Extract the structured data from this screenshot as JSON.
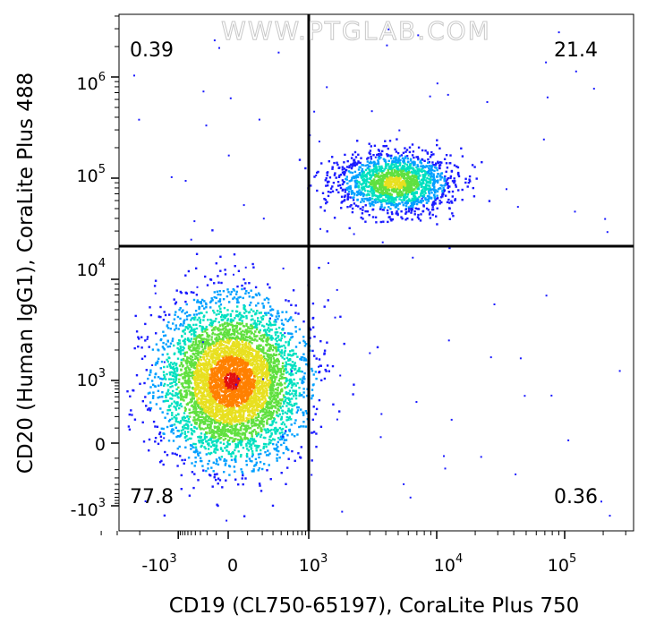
{
  "chart_data": {
    "type": "scatter",
    "subtype": "flow-cytometry-density-dot-plot",
    "title": "",
    "watermark": "WWW.PTGLAB.COM",
    "xlabel": "CD19 (CL750-65197), CoraLite Plus 750",
    "ylabel": "CD20 (Human IgG1), CoraLite Plus 488",
    "x_scale": "biexponential",
    "y_scale": "biexponential",
    "x_ticks": [
      {
        "value": -1000,
        "base": "-10",
        "exp": "3"
      },
      {
        "value": 0,
        "base": "0",
        "exp": ""
      },
      {
        "value": 1000,
        "base": "10",
        "exp": "3"
      },
      {
        "value": 10000,
        "base": "10",
        "exp": "4"
      },
      {
        "value": 100000,
        "base": "10",
        "exp": "5"
      }
    ],
    "y_ticks": [
      {
        "value": -1000,
        "base": "-10",
        "exp": "3"
      },
      {
        "value": 0,
        "base": "0",
        "exp": ""
      },
      {
        "value": 1000,
        "base": "10",
        "exp": "3"
      },
      {
        "value": 10000,
        "base": "10",
        "exp": "4"
      },
      {
        "value": 100000,
        "base": "10",
        "exp": "5"
      },
      {
        "value": 1000000,
        "base": "10",
        "exp": "6"
      }
    ],
    "quadrant_gate": {
      "x": 1000,
      "y": 20000
    },
    "quadrants": [
      {
        "position": "top-left",
        "percent": "0.39"
      },
      {
        "position": "top-right",
        "percent": "21.4"
      },
      {
        "position": "bottom-left",
        "percent": "77.8"
      },
      {
        "position": "bottom-right",
        "percent": "0.36"
      }
    ],
    "populations": [
      {
        "name_hidden": true,
        "center": [
          0,
          800
        ],
        "spread": [
          0.55,
          0.5
        ],
        "share": 0.778,
        "color_peak": "#e0201c"
      },
      {
        "name_hidden": true,
        "center": [
          4500,
          70000
        ],
        "spread": [
          0.18,
          0.12
        ],
        "share": 0.214,
        "color_peak": "#b8e028"
      }
    ],
    "density_colors": [
      "#1a1aff",
      "#00a0ff",
      "#00e0c0",
      "#60e040",
      "#e8e020",
      "#ff8000",
      "#e01010"
    ],
    "grid": false,
    "legend": "none"
  }
}
